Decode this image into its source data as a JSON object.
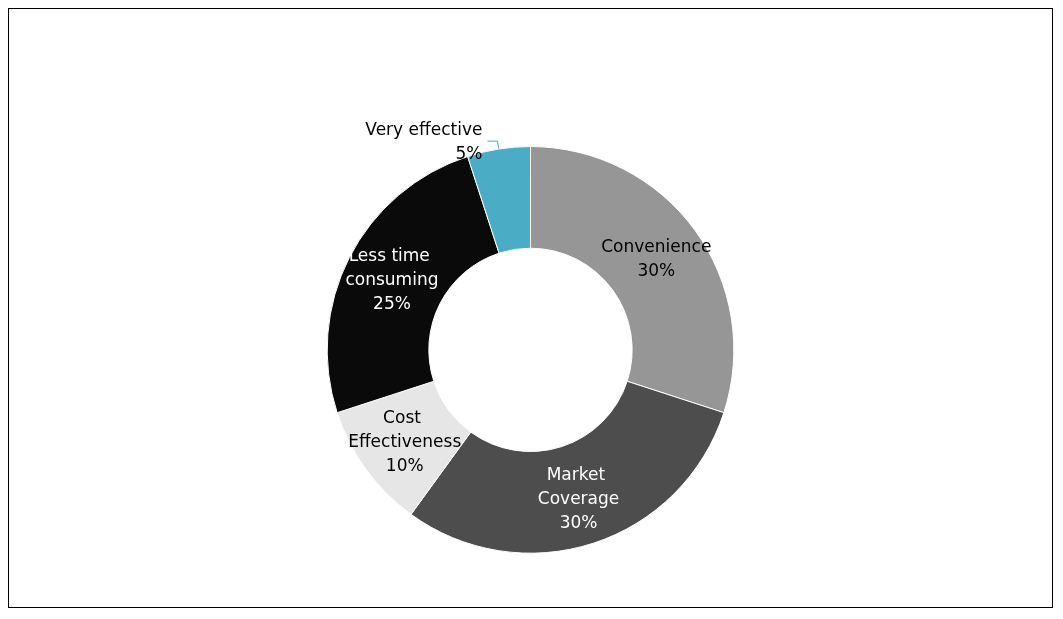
{
  "chart_data": {
    "type": "donut",
    "categories": [
      "Convenience",
      "Market Coverage",
      "Cost Effectiveness",
      "Less time consuming",
      "Very effective"
    ],
    "values": [
      30,
      30,
      10,
      25,
      5
    ],
    "colors": [
      "#969696",
      "#4d4d4d",
      "#e6e6e6",
      "#0a0a0a",
      "#4bacc6"
    ],
    "value_labels": [
      "30%",
      "30%",
      "10%",
      "25%",
      "5%"
    ],
    "legend": false
  }
}
